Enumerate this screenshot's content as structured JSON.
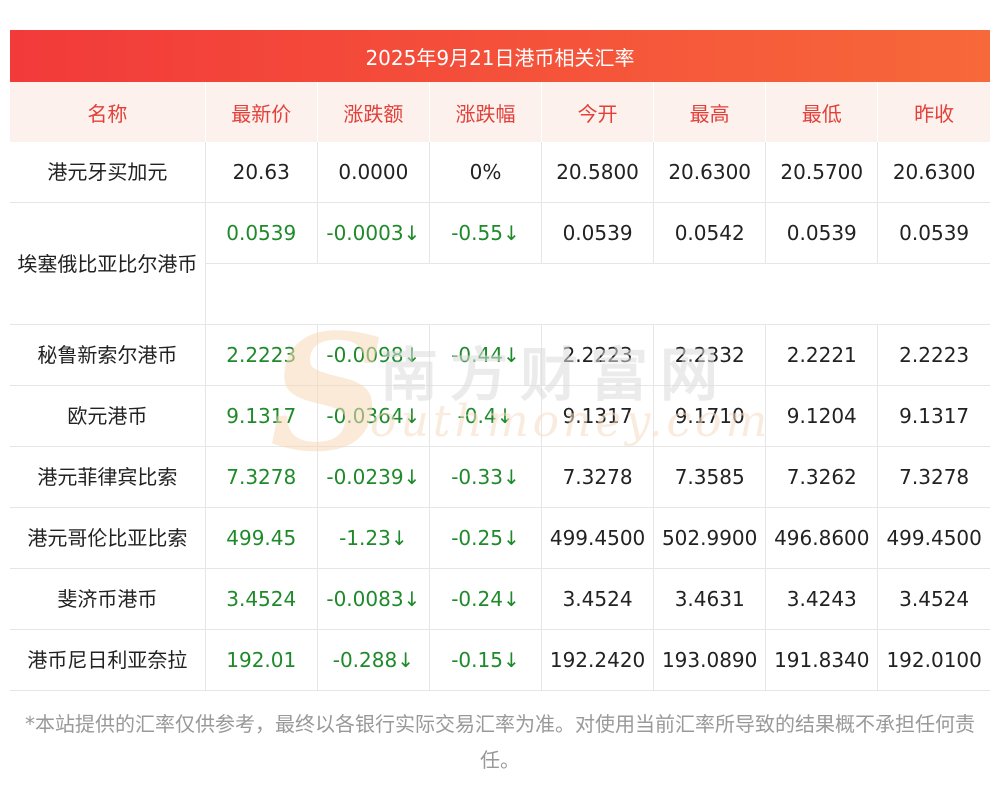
{
  "banner": {
    "title": "2025年9月21日港币相关汇率"
  },
  "table": {
    "headers": [
      "名称",
      "最新价",
      "涨跌额",
      "涨跌幅",
      "今开",
      "最高",
      "最低",
      "昨收"
    ],
    "rows": [
      {
        "cells": [
          "港元牙买加元",
          "20.63",
          "0.0000",
          "0%",
          "20.5800",
          "20.6300",
          "20.5700",
          "20.6300"
        ],
        "trend": "flat"
      },
      {
        "cells": [
          "埃塞俄比亚比尔港币",
          "0.0539",
          "-0.0003↓",
          "-0.55↓",
          "0.0539",
          "0.0542",
          "0.0539",
          "0.0539"
        ],
        "trend": "down"
      },
      {
        "cells": [
          "秘鲁新索尔港币",
          "2.2223",
          "-0.0098↓",
          "-0.44↓",
          "2.2223",
          "2.2332",
          "2.2221",
          "2.2223"
        ],
        "trend": "down"
      },
      {
        "cells": [
          "欧元港币",
          "9.1317",
          "-0.0364↓",
          "-0.4↓",
          "9.1317",
          "9.1710",
          "9.1204",
          "9.1317"
        ],
        "trend": "down"
      },
      {
        "cells": [
          "港元菲律宾比索",
          "7.3278",
          "-0.0239↓",
          "-0.33↓",
          "7.3278",
          "7.3585",
          "7.3262",
          "7.3278"
        ],
        "trend": "down"
      },
      {
        "cells": [
          "港元哥伦比亚比索",
          "499.45",
          "-1.23↓",
          "-0.25↓",
          "499.4500",
          "502.9900",
          "496.8600",
          "499.4500"
        ],
        "trend": "down"
      },
      {
        "cells": [
          "斐济币港币",
          "3.4524",
          "-0.0083↓",
          "-0.24↓",
          "3.4524",
          "3.4631",
          "3.4243",
          "3.4524"
        ],
        "trend": "down"
      },
      {
        "cells": [
          "港币尼日利亚奈拉",
          "192.01",
          "-0.288↓",
          "-0.15↓",
          "192.2420",
          "193.0890",
          "191.8340",
          "192.0100"
        ],
        "trend": "down"
      }
    ]
  },
  "watermark": {
    "logo_text": "南方财富网",
    "logo_url_text": "outhmoney.com",
    "logo_initial": "S"
  },
  "footnote": "*本站提供的汇率仅供参考，最终以各银行实际交易汇率为准。对使用当前汇率所导致的结果概不承担任何责任。",
  "colors": {
    "banner": "#f23a3a",
    "header_text": "#e2413a",
    "header_bg": "#fdf1ee",
    "down": "#1f8a2b",
    "text": "#222222",
    "note": "#999999"
  }
}
